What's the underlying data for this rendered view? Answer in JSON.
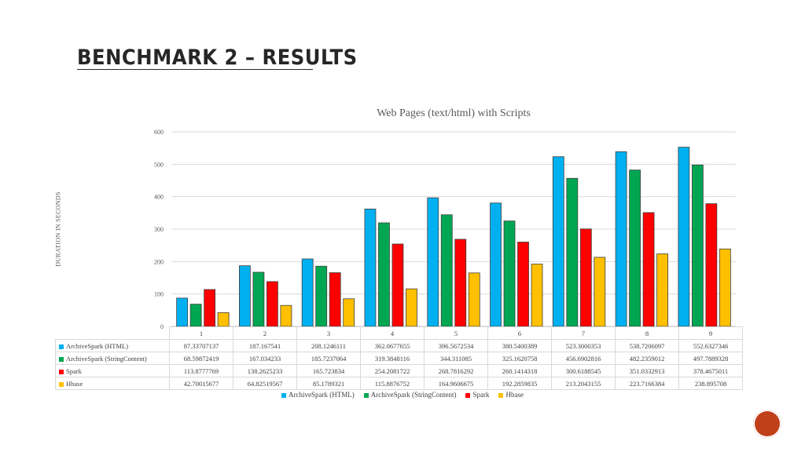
{
  "slide": {
    "title": "BENCHMARK 2 – RESULTS",
    "page_number": "",
    "accent_color": "#c0401b"
  },
  "chart_data": {
    "type": "bar",
    "title": "Web Pages (text/html) with Scripts",
    "xlabel": "",
    "ylabel": "DURATION IN SECONDS",
    "ylim": [
      0,
      600
    ],
    "y_ticks": [
      0,
      100,
      200,
      300,
      400,
      500,
      600
    ],
    "grid": true,
    "legend_position": "bottom",
    "categories": [
      "1",
      "2",
      "3",
      "4",
      "5",
      "6",
      "7",
      "8",
      "9"
    ],
    "series": [
      {
        "name": "ArchiveSpark (HTML)",
        "color": "#00b0f0",
        "values": [
          87.33707137,
          187.167541,
          208.1246111,
          362.0677655,
          396.5672534,
          380.5400389,
          523.3000353,
          538.7206097,
          552.6327346
        ],
        "labels": [
          "87.33707137",
          "187.167541",
          "208.1246111",
          "362.0677655",
          "396.5672534",
          "380.5400389",
          "523.3000353",
          "538.7206097",
          "552.6327346"
        ]
      },
      {
        "name": "ArchiveSpark (StringContent)",
        "color": "#00a651",
        "values": [
          68.59872419,
          167.034233,
          185.7237064,
          319.3848116,
          344.311085,
          325.1620758,
          456.6902816,
          482.2359012,
          497.7889328
        ],
        "labels": [
          "68.59872419",
          "167.034233",
          "185.7237064",
          "319.3848116",
          "344.311085",
          "325.1620758",
          "456.6902816",
          "482.2359012",
          "497.7889328"
        ]
      },
      {
        "name": "Spark",
        "color": "#ff0000",
        "values": [
          113.8777769,
          138.2625233,
          165.723834,
          254.2081722,
          268.7816292,
          260.1414318,
          300.6188545,
          351.0332913,
          378.4675011
        ],
        "labels": [
          "113.8777769",
          "138.2625233",
          "165.723834",
          "254.2081722",
          "268.7816292",
          "260.1414318",
          "300.6188545",
          "351.0332913",
          "378.4675011"
        ]
      },
      {
        "name": "Hbase",
        "color": "#ffc000",
        "values": [
          42.70015677,
          64.82519567,
          85.1789321,
          115.8876752,
          164.9606675,
          192.2859835,
          213.2043155,
          223.7166384,
          238.895708
        ],
        "labels": [
          "42.70015677",
          "64.82519567",
          "85.1789321",
          "115.8876752",
          "164.9606675",
          "192.2859835",
          "213.2043155",
          "223.7166384",
          "238.895708"
        ]
      }
    ]
  }
}
